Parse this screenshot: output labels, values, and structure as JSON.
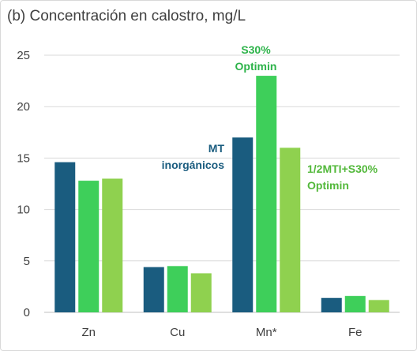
{
  "chart_data": {
    "type": "bar",
    "title": "(b) Concentración en calostro, mg/L",
    "xlabel": "",
    "ylabel": "",
    "categories": [
      "Zn",
      "Cu",
      "Mn*",
      "Fe"
    ],
    "ylim": [
      0,
      25
    ],
    "yticks": [
      0,
      5,
      10,
      15,
      20,
      25
    ],
    "grid": true,
    "series": [
      {
        "name": "MT inorgánicos",
        "color": "#1a5c7f",
        "values": [
          14.6,
          4.4,
          17.0,
          1.4
        ]
      },
      {
        "name": "S30% Optimin",
        "color": "#3ecf5a",
        "values": [
          12.8,
          4.5,
          23.0,
          1.6
        ]
      },
      {
        "name": "1/2MTI+S30% Optimin",
        "color": "#8fd14f",
        "values": [
          13.0,
          3.8,
          16.0,
          1.2
        ]
      }
    ],
    "annotations": [
      {
        "lines": [
          "MT",
          "inorgánicos"
        ],
        "color": "#1a5c7f"
      },
      {
        "lines": [
          "S30%",
          "Optimin"
        ],
        "color": "#2db34a"
      },
      {
        "lines": [
          "1/2MTI+S30%",
          "Optimin"
        ],
        "color": "#52b83a"
      }
    ]
  }
}
